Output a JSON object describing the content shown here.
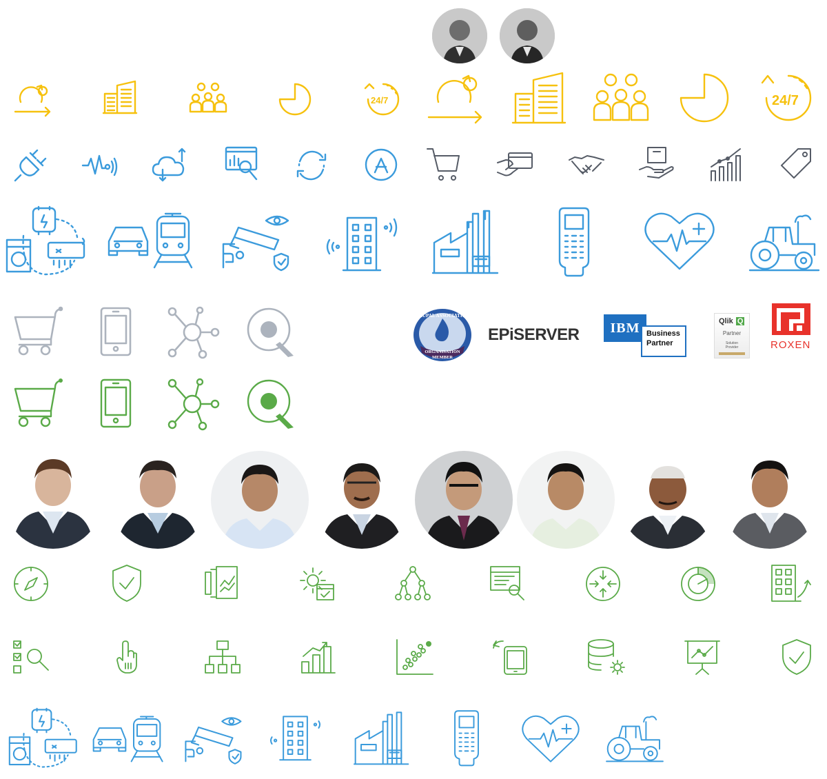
{
  "colors": {
    "yellow": "#f6c10e",
    "blue": "#3b9bdc",
    "dark": "#555b66",
    "gray": "#acb3bd",
    "green": "#5aaa48",
    "roxen_red": "#e8322b",
    "ibm_blue": "#1f70c1",
    "drupal_blue": "#2a5aa8",
    "drupal_purple": "#4b2a5e"
  },
  "top_avatars": [
    "avatar-person-1",
    "avatar-person-2"
  ],
  "yellow_icons_small": [
    "agile-cycle-icon",
    "building-icon",
    "team-icon",
    "pie-chart-icon",
    "support-24-7-icon"
  ],
  "yellow_icons_large": [
    "agile-cycle-icon",
    "building-icon",
    "team-icon",
    "pie-chart-icon",
    "support-24-7-icon"
  ],
  "support_label": "24/7",
  "blue_small_icons": [
    "plug-icon",
    "pulse-signal-icon",
    "cloud-sync-icon",
    "web-analytics-icon",
    "refresh-cycle-icon",
    "app-store-icon"
  ],
  "dark_icons": [
    "shopping-cart-icon",
    "card-payment-icon",
    "handshake-icon",
    "delivery-box-icon",
    "growth-chart-icon",
    "price-tag-icon"
  ],
  "iot_icons": [
    "smart-home-icon",
    "transport-icon",
    "surveillance-icon",
    "smart-building-icon",
    "factory-icon",
    "pos-terminal-icon",
    "health-icon",
    "tractor-icon"
  ],
  "gray_icons": [
    "cart-icon",
    "mobile-icon",
    "network-hub-icon",
    "qlik-search-icon"
  ],
  "green_icons": [
    "cart-icon",
    "mobile-icon",
    "network-hub-icon",
    "qlik-search-icon"
  ],
  "logos": {
    "drupal": {
      "line1": "DRUPAL ASSOCIATION",
      "line2": "ORGANISATION",
      "line3": "MEMBER"
    },
    "episerver": "EPiSERVER",
    "ibm": {
      "brand": "IBM",
      "line1": "Business",
      "line2": "Partner"
    },
    "qlik": {
      "brand": "Qlik",
      "mark": "Q",
      "line1": "Partner",
      "line2": "Solution",
      "line3": "Provider"
    },
    "roxen": "ROXEN"
  },
  "team_avatars": [
    "avatar-1",
    "avatar-2",
    "avatar-3",
    "avatar-4",
    "avatar-5",
    "avatar-6",
    "avatar-7",
    "avatar-8"
  ],
  "green_line_icons_row1": [
    "compass-icon",
    "shield-check-icon",
    "report-pages-icon",
    "settings-calendar-icon",
    "hierarchy-icon",
    "document-search-icon",
    "arrows-converge-icon",
    "pie-analysis-icon",
    "building-growth-icon"
  ],
  "green_line_icons_row2": [
    "checklist-search-icon",
    "pointer-hand-icon",
    "org-chart-icon",
    "bar-growth-icon",
    "scatter-chart-icon",
    "tablet-sync-icon",
    "database-settings-icon",
    "presentation-icon",
    "shield-check-icon"
  ]
}
